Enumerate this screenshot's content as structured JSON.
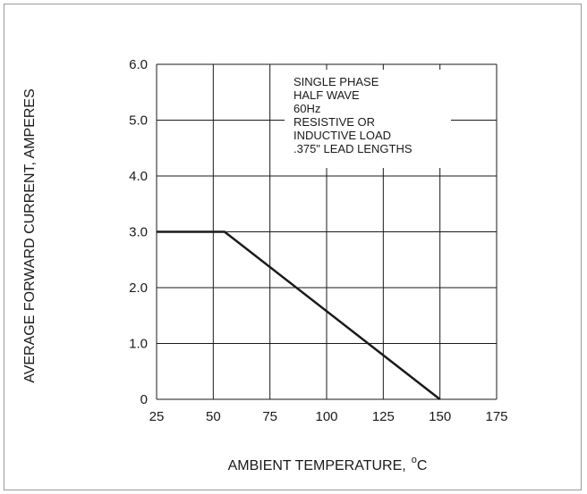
{
  "chart_data": {
    "type": "line",
    "xlabel": "AMBIENT TEMPERATURE,",
    "xlabel_unit_degree": "o",
    "xlabel_unit": "C",
    "ylabel": "AVERAGE FORWARD CURRENT, AMPERES",
    "xlim": [
      25,
      175
    ],
    "ylim": [
      0,
      6
    ],
    "x_ticks": [
      "25",
      "50",
      "75",
      "100",
      "125",
      "150",
      "175"
    ],
    "y_ticks": [
      "0",
      "1.0",
      "2.0",
      "3.0",
      "4.0",
      "5.0",
      "6.0"
    ],
    "grid": true,
    "legend": "none",
    "annotation": [
      "SINGLE PHASE",
      "HALF WAVE",
      "60Hz",
      "RESISTIVE OR",
      "INDUCTIVE LOAD",
      ".375\" LEAD LENGTHS"
    ],
    "series": [
      {
        "x": [
          25,
          55,
          150
        ],
        "y": [
          3.0,
          3.0,
          0
        ],
        "color": "#1a1a1a"
      }
    ]
  }
}
